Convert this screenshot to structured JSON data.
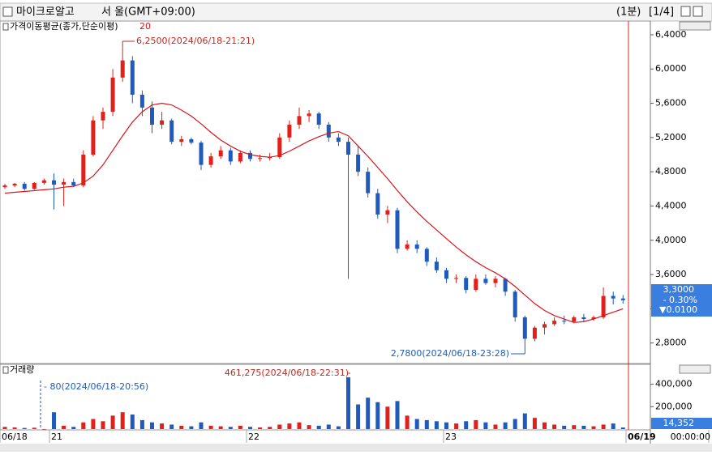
{
  "header": {
    "title": "마이크로알고",
    "market": "서 울(GMT+09:00)",
    "interval": "(1분)",
    "page": "[1/4]"
  },
  "chart_data": [
    {
      "type": "candlestick",
      "legend": "가격이동평균(종가,단순이평)",
      "period": 20,
      "up_color": "#e0201a",
      "down_color": "#1e5bbd",
      "open": [
        4.62,
        4.64,
        4.66,
        4.6,
        4.67,
        4.7,
        4.65,
        4.68,
        4.64,
        5.0,
        5.4,
        5.5,
        5.9,
        6.1,
        5.7,
        5.55,
        5.35,
        5.4,
        5.15,
        5.18,
        5.14,
        4.88,
        4.98,
        5.05,
        4.92,
        5.02,
        4.95,
        4.96,
        4.97,
        5.2,
        5.35,
        5.45,
        5.48,
        5.35,
        5.2,
        5.15,
        5.0,
        4.8,
        4.55,
        4.3,
        4.35,
        3.9,
        3.95,
        3.9,
        3.75,
        3.65,
        3.55,
        3.56,
        3.42,
        3.55,
        3.5,
        3.55,
        3.4,
        3.1,
        2.85,
        2.98,
        3.02,
        3.06,
        3.05,
        3.1,
        3.08,
        3.1,
        3.35,
        3.32
      ],
      "high": [
        4.66,
        4.67,
        4.68,
        4.68,
        4.72,
        4.78,
        4.72,
        4.72,
        5.05,
        5.45,
        5.55,
        6.0,
        6.25,
        6.15,
        5.75,
        5.62,
        5.5,
        5.42,
        5.22,
        5.2,
        5.16,
        5.02,
        5.1,
        5.08,
        5.05,
        5.05,
        5.0,
        5.02,
        5.25,
        5.4,
        5.55,
        5.52,
        5.5,
        5.38,
        5.25,
        5.2,
        5.1,
        4.85,
        4.6,
        4.4,
        4.38,
        4.0,
        4.0,
        3.92,
        3.8,
        3.68,
        3.6,
        3.58,
        3.6,
        3.6,
        3.58,
        3.56,
        3.42,
        3.12,
        3.0,
        3.05,
        3.1,
        3.12,
        3.12,
        3.14,
        3.12,
        3.45,
        3.4,
        3.36
      ],
      "low": [
        4.6,
        4.62,
        4.58,
        4.59,
        4.65,
        4.36,
        4.4,
        4.62,
        4.62,
        4.98,
        5.3,
        5.45,
        5.85,
        5.6,
        5.45,
        5.25,
        5.3,
        5.12,
        5.1,
        5.12,
        4.82,
        4.85,
        4.95,
        4.88,
        4.9,
        4.92,
        4.92,
        4.93,
        4.95,
        5.15,
        5.3,
        5.38,
        5.3,
        5.15,
        5.1,
        3.55,
        4.75,
        4.5,
        4.25,
        4.2,
        3.85,
        3.88,
        3.85,
        3.7,
        3.62,
        3.5,
        3.5,
        3.38,
        3.4,
        3.48,
        3.45,
        3.35,
        3.05,
        2.78,
        2.82,
        2.9,
        3.0,
        3.02,
        3.03,
        3.05,
        3.06,
        3.08,
        3.25,
        3.26
      ],
      "close": [
        4.64,
        4.66,
        4.6,
        4.67,
        4.7,
        4.65,
        4.68,
        4.64,
        5.0,
        5.4,
        5.5,
        5.9,
        6.1,
        5.7,
        5.55,
        5.35,
        5.4,
        5.15,
        5.18,
        5.14,
        4.88,
        4.98,
        5.05,
        4.92,
        5.02,
        4.95,
        4.96,
        4.97,
        5.2,
        5.35,
        5.45,
        5.48,
        5.35,
        5.2,
        5.15,
        5.0,
        4.8,
        4.55,
        4.3,
        4.35,
        3.9,
        3.95,
        3.9,
        3.75,
        3.65,
        3.55,
        3.56,
        3.42,
        3.55,
        3.5,
        3.55,
        3.4,
        3.1,
        2.85,
        2.98,
        3.02,
        3.06,
        3.05,
        3.1,
        3.08,
        3.1,
        3.35,
        3.32,
        3.3
      ],
      "series": [
        {
          "name": "가격이동평균(종가,단순이평)",
          "color": "#d8141a",
          "values": [
            4.55,
            4.56,
            4.57,
            4.58,
            4.59,
            4.6,
            4.62,
            4.63,
            4.67,
            4.75,
            4.88,
            5.05,
            5.22,
            5.38,
            5.5,
            5.58,
            5.6,
            5.58,
            5.52,
            5.45,
            5.36,
            5.26,
            5.17,
            5.1,
            5.04,
            5.0,
            4.98,
            4.97,
            4.99,
            5.04,
            5.1,
            5.16,
            5.21,
            5.25,
            5.27,
            5.22,
            5.1,
            4.98,
            4.85,
            4.72,
            4.58,
            4.45,
            4.33,
            4.22,
            4.12,
            4.02,
            3.92,
            3.83,
            3.75,
            3.68,
            3.62,
            3.55,
            3.46,
            3.36,
            3.26,
            3.18,
            3.12,
            3.08,
            3.04,
            3.05,
            3.08,
            3.12,
            3.16,
            3.2
          ]
        }
      ],
      "ylim": [
        2.57,
        6.56
      ],
      "yticks": [
        {
          "value": 2.8,
          "label": "2,8000"
        },
        {
          "value": 3.2,
          "label": "3,2000"
        },
        {
          "value": 3.6,
          "label": "3,6000"
        },
        {
          "value": 4.0,
          "label": "4,0000"
        },
        {
          "value": 4.4,
          "label": "4,4000"
        },
        {
          "value": 4.8,
          "label": "4,8000"
        },
        {
          "value": 5.2,
          "label": "5,2000"
        },
        {
          "value": 5.6,
          "label": "5,6000"
        },
        {
          "value": 6.0,
          "label": "6,0000"
        },
        {
          "value": 6.4,
          "label": "6,4000"
        }
      ],
      "annotations": [
        "6,2500(2024/06/18-21:21)",
        "2,7800(2024/06/18-23:28)"
      ],
      "last_price": {
        "price": "3,3000",
        "change": "- 0.30%",
        "diff": "▼0.0100"
      }
    },
    {
      "type": "bar",
      "title": "거래량",
      "values": [
        20000,
        15000,
        10000,
        12000,
        80,
        150000,
        30000,
        20000,
        60000,
        90000,
        70000,
        120000,
        150000,
        130000,
        80000,
        60000,
        50000,
        40000,
        30000,
        25000,
        60000,
        30000,
        25000,
        20000,
        30000,
        20000,
        15000,
        20000,
        40000,
        50000,
        60000,
        35000,
        30000,
        40000,
        25000,
        461275,
        220000,
        280000,
        240000,
        200000,
        250000,
        120000,
        90000,
        80000,
        70000,
        60000,
        50000,
        70000,
        80000,
        60000,
        40000,
        60000,
        90000,
        140000,
        100000,
        60000,
        40000,
        30000,
        35000,
        30000,
        25000,
        40000,
        50000,
        14352
      ],
      "ylim": [
        0,
        570000
      ],
      "yticks": [
        {
          "value": 200000,
          "label": "200,000"
        },
        {
          "value": 400000,
          "label": "400,000"
        }
      ],
      "annotations": [
        "461,275(2024/06/18-22:31)",
        "- 80(2024/06/18-20:56)"
      ],
      "last_label": "14,352",
      "x_labels": [
        "06/18",
        "21",
        "22",
        "23",
        "06/19",
        "00:00:00"
      ]
    }
  ]
}
